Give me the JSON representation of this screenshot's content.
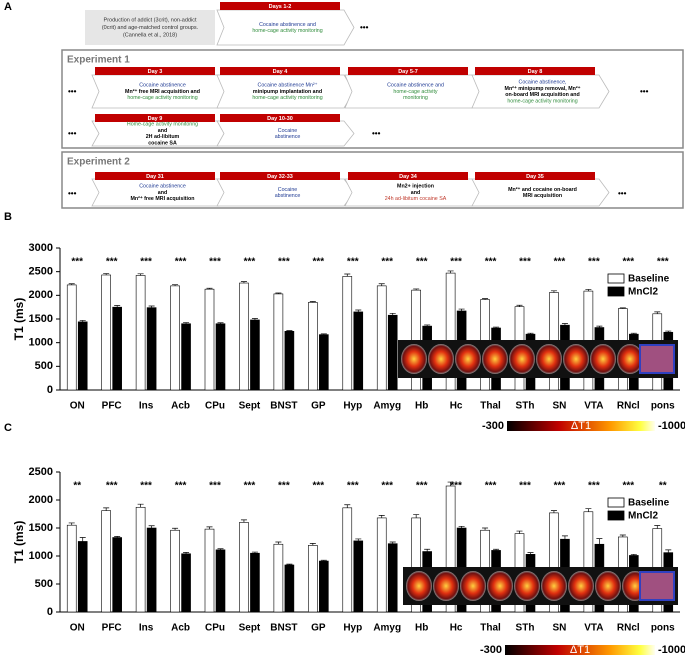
{
  "panel_a": {
    "label": "A",
    "ellipsis": "•••",
    "intro": [
      "Production of addict (3crit), non-addict",
      "(0crit) and age-matched control groups.",
      "(Cannella et al., 2018)"
    ],
    "experiments": [
      "Experiment 1",
      "Experiment 2"
    ],
    "steps": [
      {
        "day": "Days 1-2",
        "lines": [
          {
            "text": "Cocaine abstinence and",
            "color": "#1f3a93"
          },
          {
            "text": "home-cage activity monitoring",
            "color": "#2e8b3a"
          }
        ]
      },
      {
        "day": "Day 3",
        "lines": [
          {
            "text": "Cocaine abstinence",
            "color": "#1f3a93"
          },
          {
            "text": "Mn²⁺ free MRI acquisition and",
            "color": "#000000"
          },
          {
            "text": "home-cage activity monitoring",
            "color": "#2e8b3a"
          }
        ]
      },
      {
        "day": "Day 4",
        "lines": [
          {
            "text": "Cocaine abstinence Mn²⁺",
            "color": "#1f3a93"
          },
          {
            "text": "minipump implantation and",
            "color": "#000000"
          },
          {
            "text": "home-cage activity monitoring",
            "color": "#2e8b3a"
          }
        ]
      },
      {
        "day": "Day 5-7",
        "lines": [
          {
            "text": "Cocaine abstinence and",
            "color": "#1f3a93"
          },
          {
            "text": "home-cage activity",
            "color": "#2e8b3a"
          },
          {
            "text": "monitoring",
            "color": "#2e8b3a"
          }
        ]
      },
      {
        "day": "Day 8",
        "lines": [
          {
            "text": "Cocaine abstinence,",
            "color": "#1f3a93"
          },
          {
            "text": "Mn²⁺ minipump removal, Mn²⁺",
            "color": "#000000"
          },
          {
            "text": "on-board MRI acquisition and",
            "color": "#000000"
          },
          {
            "text": "home-cage activity monitoring",
            "color": "#2e8b3a"
          }
        ]
      },
      {
        "day": "Day 9",
        "lines": [
          {
            "text": "Home-cage activity monitoring",
            "color": "#2e8b3a"
          },
          {
            "text": "and",
            "color": "#000000"
          },
          {
            "text": "2H ad-libitum",
            "color": "#000000"
          },
          {
            "text": "cocaine SA",
            "color": "#000000"
          }
        ]
      },
      {
        "day": "Day 10-30",
        "lines": [
          {
            "text": "Cocaine",
            "color": "#1f3a93"
          },
          {
            "text": "abstinence",
            "color": "#1f3a93"
          }
        ]
      },
      {
        "day": "Day 31",
        "lines": [
          {
            "text": "Cocaine abstinence",
            "color": "#1f3a93"
          },
          {
            "text": "and",
            "color": "#000000"
          },
          {
            "text": "Mn²⁺ free MRI acquisition",
            "color": "#000000"
          }
        ]
      },
      {
        "day": "Day 32-33",
        "lines": [
          {
            "text": "Cocaine",
            "color": "#1f3a93"
          },
          {
            "text": "abstinence",
            "color": "#1f3a93"
          }
        ]
      },
      {
        "day": "Day 34",
        "lines": [
          {
            "text": "Mn2+ injection",
            "color": "#000000"
          },
          {
            "text": "and",
            "color": "#000000"
          },
          {
            "text": "24h ad-libitum cocaine SA",
            "color": "#c0392b"
          }
        ]
      },
      {
        "day": "Day 35",
        "lines": [
          {
            "text": "Mn²⁺ and cocaine   on-board",
            "color": "#000000"
          },
          {
            "text": "MRI acquisition",
            "color": "#000000"
          }
        ]
      }
    ]
  },
  "chart_data": [
    {
      "type": "bar",
      "panel": "B",
      "ylabel": "T1 (ms)",
      "categories": [
        "ON",
        "PFC",
        "Ins",
        "Acb",
        "CPu",
        "Sept",
        "BNST",
        "GP",
        "Hyp",
        "Amyg",
        "Hb",
        "Hc",
        "Thal",
        "STh",
        "SN",
        "VTA",
        "RNcl",
        "pons"
      ],
      "series": [
        {
          "name": "Baseline",
          "color": "#ffffff",
          "values": [
            2220,
            2430,
            2420,
            2200,
            2130,
            2260,
            2030,
            1850,
            2400,
            2200,
            2110,
            2470,
            1910,
            1760,
            2060,
            2090,
            1720,
            1610
          ],
          "errors": [
            25,
            30,
            35,
            25,
            20,
            30,
            20,
            20,
            50,
            45,
            25,
            45,
            20,
            30,
            35,
            35,
            15,
            40
          ]
        },
        {
          "name": "MnCl2",
          "color": "#000000",
          "values": [
            1440,
            1750,
            1740,
            1400,
            1400,
            1480,
            1240,
            1170,
            1650,
            1580,
            1350,
            1670,
            1310,
            1180,
            1370,
            1320,
            1180,
            1220
          ],
          "errors": [
            30,
            35,
            35,
            25,
            20,
            30,
            15,
            15,
            40,
            40,
            25,
            40,
            20,
            20,
            35,
            30,
            20,
            25
          ]
        }
      ],
      "annotations": [
        "***",
        "***",
        "***",
        "***",
        "***",
        "***",
        "***",
        "***",
        "***",
        "***",
        "***",
        "***",
        "***",
        "***",
        "***",
        "***",
        "***",
        "***"
      ],
      "ylim": [
        0,
        3000
      ],
      "yticks": [
        0,
        500,
        1000,
        1500,
        2000,
        2500,
        3000
      ],
      "legend": "upper right",
      "colorbar": {
        "min_label": "-300",
        "label": "ΔT1",
        "max_label": "-1000"
      }
    },
    {
      "type": "bar",
      "panel": "C",
      "ylabel": "T1 (ms)",
      "categories": [
        "ON",
        "PFC",
        "Ins",
        "Acb",
        "CPu",
        "Sept",
        "BNST",
        "GP",
        "Hyp",
        "Amyg",
        "Hb",
        "Hc",
        "Thal",
        "STh",
        "SN",
        "VTA",
        "RNcl",
        "pons"
      ],
      "series": [
        {
          "name": "Baseline",
          "color": "#ffffff",
          "values": [
            1550,
            1810,
            1870,
            1460,
            1480,
            1600,
            1210,
            1190,
            1860,
            1680,
            1680,
            2250,
            1460,
            1400,
            1770,
            1790,
            1340,
            1490
          ],
          "errors": [
            40,
            50,
            55,
            35,
            40,
            45,
            40,
            35,
            55,
            45,
            60,
            70,
            40,
            45,
            40,
            55,
            35,
            55
          ]
        },
        {
          "name": "MnCl2",
          "color": "#000000",
          "values": [
            1260,
            1330,
            1500,
            1040,
            1110,
            1050,
            840,
            910,
            1270,
            1220,
            1080,
            1500,
            1100,
            1030,
            1300,
            1210,
            1010,
            1060
          ],
          "errors": [
            70,
            20,
            40,
            25,
            20,
            20,
            15,
            15,
            35,
            30,
            40,
            30,
            20,
            30,
            60,
            100,
            20,
            50
          ]
        }
      ],
      "annotations": [
        "**",
        "***",
        "***",
        "***",
        "***",
        "***",
        "***",
        "***",
        "***",
        "***",
        "***",
        "***",
        "***",
        "***",
        "***",
        "***",
        "***",
        "**"
      ],
      "ylim": [
        0,
        2500
      ],
      "yticks": [
        0,
        500,
        1000,
        1500,
        2000,
        2500
      ],
      "legend": "upper right",
      "colorbar": {
        "min_label": "-300",
        "label": "ΔT1",
        "max_label": "-1000"
      }
    }
  ]
}
